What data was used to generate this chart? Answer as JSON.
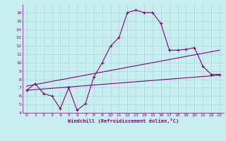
{
  "title": "",
  "xlabel": "Windchill (Refroidissement éolien,°C)",
  "ylabel": "",
  "background_color": "#c8eef0",
  "line_color": "#800080",
  "grid_color": "#a8d8dc",
  "xlim": [
    -0.5,
    23.5
  ],
  "ylim": [
    4,
    17
  ],
  "yticks": [
    4,
    5,
    6,
    7,
    8,
    9,
    10,
    11,
    12,
    13,
    14,
    15,
    16
  ],
  "xticks": [
    0,
    1,
    2,
    3,
    4,
    5,
    6,
    7,
    8,
    9,
    10,
    11,
    12,
    13,
    14,
    15,
    16,
    17,
    18,
    19,
    20,
    21,
    22,
    23
  ],
  "main_x": [
    0,
    1,
    2,
    3,
    4,
    5,
    6,
    7,
    8,
    9,
    10,
    11,
    12,
    13,
    14,
    15,
    16,
    17,
    18,
    19,
    20,
    21,
    22,
    23
  ],
  "main_y": [
    6.7,
    7.5,
    6.3,
    6.0,
    4.5,
    7.0,
    4.3,
    5.1,
    8.3,
    10.0,
    12.0,
    13.0,
    16.0,
    16.3,
    16.0,
    16.0,
    14.7,
    11.5,
    11.5,
    11.6,
    11.8,
    9.6,
    8.6,
    8.6
  ],
  "line1_x": [
    0,
    23
  ],
  "line1_y": [
    6.7,
    8.5
  ],
  "line2_x": [
    0,
    23
  ],
  "line2_y": [
    7.2,
    11.5
  ],
  "marker": "+"
}
